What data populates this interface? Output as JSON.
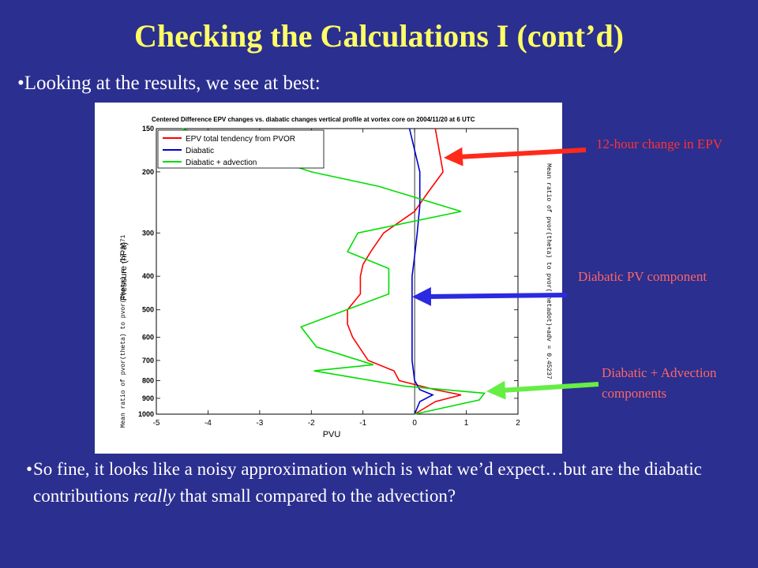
{
  "slide": {
    "title": "Checking the Calculations I (cont’d)",
    "intro": "•Looking at the results, we see at best:",
    "annotations": [
      "12-hour change in EPV",
      "Diabatic PV component",
      "Diabatic + Advection components"
    ],
    "conclusion": {
      "bullet": "•",
      "before": "So fine, it looks like a noisy approximation which is what we’d expect…but are the diabatic contributions ",
      "emph": "really",
      "after": " that small compared to the advection?"
    }
  },
  "colors": {
    "background": "#2b2f8f",
    "title": "#ffff66",
    "epv": "#ff0000",
    "diabatic": "#0000cc",
    "advection": "#00dd00",
    "arrow_red": "#ff2a1a",
    "arrow_blue": "#2a2ae0",
    "arrow_green": "#66ee44"
  },
  "chart_data": {
    "type": "line",
    "title": "Centered Difference EPV changes vs. diabatic changes vertical profile at vortex core on 2004/11/20 at  6 UTC",
    "xlabel": "PVU",
    "ylabel": "Pressure (hPa)",
    "left_side_text": "Mean ratio of pvor(theta) to pvor(theta) = -17.3671",
    "right_side_text": "Mean ratio of pvor(theta) to pvor(thetadot)+adv = 0.45237",
    "xlim": [
      -5,
      2
    ],
    "ylim": [
      150,
      1000
    ],
    "y_scale": "log",
    "y_inverted": true,
    "x_ticks": [
      -5,
      -4,
      -3,
      -2,
      -1,
      0,
      1,
      2
    ],
    "y_ticks": [
      150,
      200,
      300,
      400,
      500,
      600,
      700,
      800,
      900,
      1000
    ],
    "legend_position": "top-left",
    "series": [
      {
        "name": "EPV total tendency from PVOR",
        "color": "#ff0000",
        "x": [
          0.4,
          0.55,
          0.25,
          0.0,
          -0.6,
          -0.85,
          -1.0,
          -1.05,
          -1.05,
          -1.3,
          -1.3,
          -1.2,
          -0.9,
          -0.4,
          -0.3,
          0.4,
          0.9,
          0.4,
          0.0
        ],
        "y": [
          150,
          200,
          230,
          260,
          300,
          340,
          370,
          400,
          450,
          500,
          550,
          600,
          700,
          750,
          800,
          850,
          880,
          920,
          1000
        ]
      },
      {
        "name": "Diabatic",
        "color": "#0000cc",
        "x": [
          -0.1,
          0.1,
          0.1,
          0.05,
          0.0,
          -0.05,
          -0.05,
          -0.05,
          -0.05,
          -0.05,
          -0.05,
          -0.05,
          0.0,
          0.1,
          0.35,
          0.1,
          0.0
        ],
        "y": [
          150,
          200,
          250,
          300,
          350,
          400,
          450,
          500,
          550,
          600,
          650,
          700,
          800,
          850,
          880,
          920,
          1000
        ]
      },
      {
        "name": "Diabatic + advection",
        "color": "#00dd00",
        "x": [
          -4.5,
          -2.0,
          -0.7,
          0.9,
          -1.1,
          -1.3,
          -0.5,
          -0.5,
          -2.2,
          -1.9,
          -0.8,
          -1.95,
          -0.2,
          1.35,
          1.25,
          0.0
        ],
        "y": [
          150,
          200,
          220,
          260,
          300,
          340,
          380,
          450,
          560,
          640,
          720,
          750,
          830,
          870,
          910,
          1000
        ]
      }
    ]
  }
}
